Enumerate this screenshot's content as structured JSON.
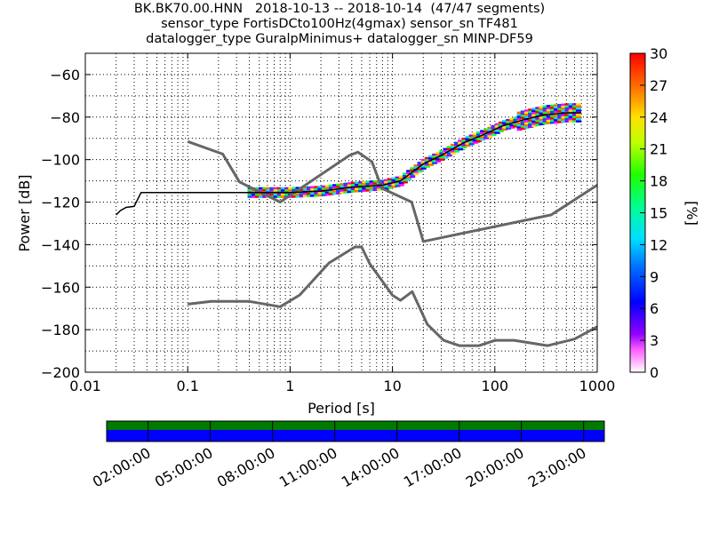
{
  "title": {
    "line1": "BK.BK70.00.HNN   2018-10-13 -- 2018-10-14  (47/47 segments)",
    "line2": "sensor_type FortisDCto100Hz(4gmax) sensor_sn TF481",
    "line3": "datalogger_type GuralpMinimus+ datalogger_sn MINP-DF59"
  },
  "chart_data": {
    "type": "heatmap",
    "xlabel": "Period [s]",
    "ylabel": "Power [dB]",
    "xscale": "log",
    "xlim": [
      0.01,
      1000
    ],
    "ylim": [
      -200,
      -50
    ],
    "xticks": [
      {
        "v": 0.01,
        "label": "0.01"
      },
      {
        "v": 0.1,
        "label": "0.1"
      },
      {
        "v": 1,
        "label": "1"
      },
      {
        "v": 10,
        "label": "10"
      },
      {
        "v": 100,
        "label": "100"
      },
      {
        "v": 1000,
        "label": "1000"
      }
    ],
    "yticks": [
      -60,
      -80,
      -100,
      -120,
      -140,
      -160,
      -180,
      -200
    ],
    "grid": true,
    "colorbar": {
      "label": "[%]",
      "range": [
        0,
        30
      ],
      "ticks": [
        0,
        3,
        6,
        9,
        12,
        15,
        18,
        21,
        24,
        27,
        30
      ]
    },
    "noise_models": [
      {
        "name": "NHNM",
        "x": [
          0.1,
          0.22,
          0.32,
          0.8,
          3.8,
          4.6,
          6.3,
          7.9,
          15.4,
          20,
          354.8,
          1000
        ],
        "y": [
          -91.5,
          -97.4,
          -110.5,
          -120,
          -98,
          -96.5,
          -101,
          -113.5,
          -120,
          -138.5,
          -126,
          -112
        ]
      },
      {
        "name": "NLNM",
        "x": [
          0.1,
          0.17,
          0.4,
          0.8,
          1.24,
          2.4,
          4.3,
          5,
          6,
          10,
          12,
          15.6,
          21.9,
          31.6,
          45,
          70,
          101,
          154,
          328,
          600,
          1000
        ],
        "y": [
          -168,
          -166.7,
          -166.7,
          -169.2,
          -163.7,
          -148.6,
          -141.1,
          -141.1,
          -149,
          -163.8,
          -166.2,
          -162.1,
          -177.5,
          -185,
          -187.5,
          -187.5,
          -185,
          -185,
          -187.5,
          -184.4,
          -178.6
        ]
      },
      {
        "name": "PDF mode",
        "x": [
          0.02,
          0.022,
          0.025,
          0.03,
          0.035,
          0.5,
          1,
          2,
          4,
          8,
          12,
          20,
          30,
          50,
          80,
          120,
          200,
          300,
          500,
          700
        ],
        "y": [
          -126,
          -124,
          -122.5,
          -122,
          -115.5,
          -115.5,
          -115.5,
          -114.8,
          -113,
          -112,
          -110,
          -102,
          -98,
          -92,
          -88,
          -84,
          -81,
          -79,
          -78,
          -78
        ]
      }
    ]
  },
  "timeline": {
    "labels": [
      "02:00:00",
      "05:00:00",
      "08:00:00",
      "11:00:00",
      "14:00:00",
      "17:00:00",
      "20:00:00",
      "23:00:00"
    ],
    "colors": {
      "top": "#007a00",
      "bottom": "#0000ff"
    }
  }
}
